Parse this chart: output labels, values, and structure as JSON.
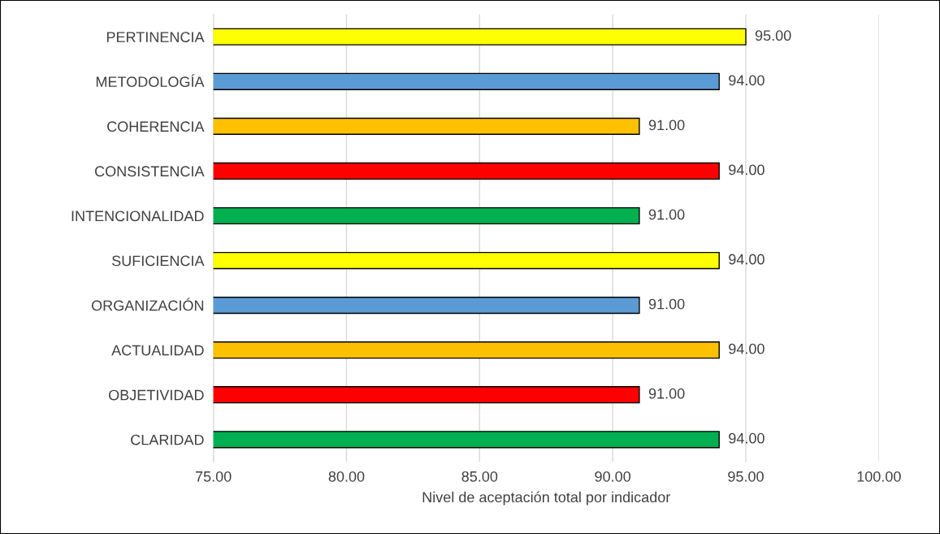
{
  "chart_data": {
    "type": "bar",
    "orientation": "horizontal",
    "xlabel": "Nivel de aceptación total por indicador",
    "categories": [
      "PERTINENCIA",
      "METODOLOGÍA",
      "COHERENCIA",
      "CONSISTENCIA",
      "INTENCIONALIDAD",
      "SUFICIENCIA",
      "ORGANIZACIÓN",
      "ACTUALIDAD",
      "OBJETIVIDAD",
      "CLARIDAD"
    ],
    "values": [
      95,
      94,
      91,
      94,
      91,
      94,
      91,
      94,
      91,
      94
    ],
    "value_labels": [
      "95.00",
      "94.00",
      "91.00",
      "94.00",
      "91.00",
      "94.00",
      "91.00",
      "94.00",
      "91.00",
      "94.00"
    ],
    "colors": [
      "#ffff00",
      "#5b9bd5",
      "#ffc000",
      "#ff0000",
      "#00b050",
      "#ffff00",
      "#5b9bd5",
      "#ffc000",
      "#ff0000",
      "#00b050"
    ],
    "xlim": [
      75,
      100
    ],
    "xticks": [
      {
        "value": 75,
        "label": "75.00"
      },
      {
        "value": 80,
        "label": "80.00"
      },
      {
        "value": 85,
        "label": "85.00"
      },
      {
        "value": 90,
        "label": "90.00"
      },
      {
        "value": 95,
        "label": "95.00"
      },
      {
        "value": 100,
        "label": "100.00"
      }
    ],
    "grid": "x",
    "legend": false
  }
}
